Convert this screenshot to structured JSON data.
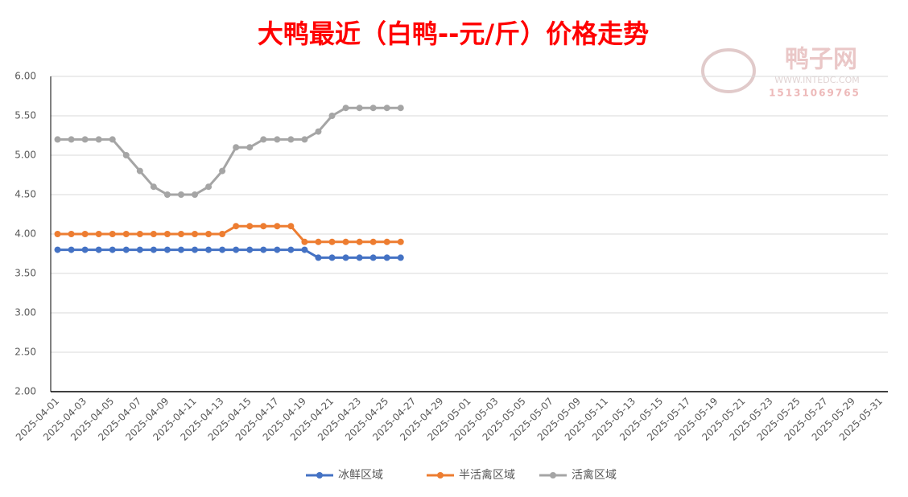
{
  "chart_data": {
    "type": "line",
    "title": "大鸭最近（白鸭--元/斤）价格走势",
    "watermark": {
      "name": "鸭子网",
      "site": "WWW.INTEDC.COM",
      "phone": "15131069765"
    },
    "categories": [
      "2025-04-01",
      null,
      "2025-04-03",
      null,
      "2025-04-05",
      null,
      "2025-04-07",
      null,
      "2025-04-09",
      null,
      "2025-04-11",
      null,
      "2025-04-13",
      null,
      "2025-04-15",
      null,
      "2025-04-17",
      null,
      "2025-04-19",
      null,
      "2025-04-21",
      null,
      "2025-04-23",
      null,
      "2025-04-25",
      null,
      "2025-04-27",
      null,
      "2025-04-29",
      null,
      "2025-05-01",
      null,
      "2025-05-03",
      null,
      "2025-05-05",
      null,
      "2025-05-07",
      null,
      "2025-05-09",
      null,
      "2025-05-11",
      null,
      "2025-05-13",
      null,
      "2025-05-15",
      null,
      "2025-05-17",
      null,
      "2025-05-19",
      null,
      "2025-05-21",
      null,
      "2025-05-23",
      null,
      "2025-05-25",
      null,
      "2025-05-27",
      null,
      "2025-05-29",
      null,
      "2025-05-31"
    ],
    "series": [
      {
        "name": "冰鲜区域",
        "color": "#4472c4",
        "values": [
          3.8,
          3.8,
          3.8,
          3.8,
          3.8,
          3.8,
          3.8,
          3.8,
          3.8,
          3.8,
          3.8,
          3.8,
          3.8,
          3.8,
          3.8,
          3.8,
          3.8,
          3.8,
          3.8,
          3.7,
          3.7,
          3.7,
          3.7,
          3.7,
          3.7,
          3.7,
          null,
          null,
          null,
          null,
          null,
          null,
          null,
          null,
          null,
          null,
          null,
          null,
          null,
          null,
          null,
          null,
          null,
          null,
          null,
          null,
          null,
          null,
          null,
          null,
          null,
          null,
          null,
          null,
          null,
          null,
          null,
          null,
          null,
          null,
          null
        ]
      },
      {
        "name": "半活禽区域",
        "color": "#ed7d31",
        "values": [
          4.0,
          4.0,
          4.0,
          4.0,
          4.0,
          4.0,
          4.0,
          4.0,
          4.0,
          4.0,
          4.0,
          4.0,
          4.0,
          4.1,
          4.1,
          4.1,
          4.1,
          4.1,
          3.9,
          3.9,
          3.9,
          3.9,
          3.9,
          3.9,
          3.9,
          3.9,
          null,
          null,
          null,
          null,
          null,
          null,
          null,
          null,
          null,
          null,
          null,
          null,
          null,
          null,
          null,
          null,
          null,
          null,
          null,
          null,
          null,
          null,
          null,
          null,
          null,
          null,
          null,
          null,
          null,
          null,
          null,
          null,
          null,
          null,
          null
        ]
      },
      {
        "name": "活禽区域",
        "color": "#a5a5a5",
        "values": [
          5.2,
          5.2,
          5.2,
          5.2,
          5.2,
          5.0,
          4.8,
          4.6,
          4.5,
          4.5,
          4.5,
          4.6,
          4.8,
          5.1,
          5.1,
          5.2,
          5.2,
          5.2,
          5.2,
          5.3,
          5.5,
          5.6,
          5.6,
          5.6,
          5.6,
          5.6,
          null,
          null,
          null,
          null,
          null,
          null,
          null,
          null,
          null,
          null,
          null,
          null,
          null,
          null,
          null,
          null,
          null,
          null,
          null,
          null,
          null,
          null,
          null,
          null,
          null,
          null,
          null,
          null,
          null,
          null,
          null,
          null,
          null,
          null,
          null
        ]
      }
    ],
    "ylim": [
      2,
      6
    ],
    "yticks": [
      {
        "value": 2,
        "label": "2.00"
      },
      {
        "value": 2.5,
        "label": "2.50"
      },
      {
        "value": 3,
        "label": "3.00"
      },
      {
        "value": 3.5,
        "label": "3.50"
      },
      {
        "value": 4,
        "label": "4.00"
      },
      {
        "value": 4.5,
        "label": "4.50"
      },
      {
        "value": 5,
        "label": "5.00"
      },
      {
        "value": 5.5,
        "label": "5.50"
      },
      {
        "value": 6,
        "label": "6.00"
      }
    ],
    "grid": true,
    "legend": "bottom"
  }
}
